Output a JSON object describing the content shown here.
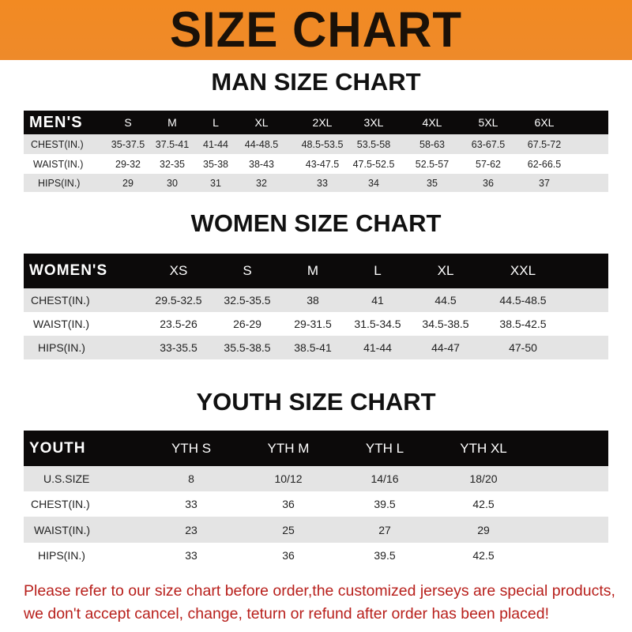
{
  "banner": {
    "title": "SIZE CHART",
    "color": "#f08a24"
  },
  "men": {
    "title": "MAN SIZE CHART",
    "header": "MEN'S",
    "sizes": [
      "S",
      "M",
      "L",
      "XL",
      "2XL",
      "3XL",
      "4XL",
      "5XL",
      "6XL"
    ],
    "rows": [
      {
        "label": "CHEST(IN.)",
        "values": [
          "35-37.5",
          "37.5-41",
          "41-44",
          "44-48.5",
          "48.5-53.5",
          "53.5-58",
          "58-63",
          "63-67.5",
          "67.5-72"
        ]
      },
      {
        "label": "WAIST(IN.)",
        "values": [
          "29-32",
          "32-35",
          "35-38",
          "38-43",
          "43-47.5",
          "47.5-52.5",
          "52.5-57",
          "57-62",
          "62-66.5"
        ]
      },
      {
        "label": "HIPS(IN.)",
        "values": [
          "29",
          "30",
          "31",
          "32",
          "33",
          "34",
          "35",
          "36",
          "37"
        ]
      }
    ]
  },
  "women": {
    "title": "WOMEN SIZE CHART",
    "header": "WOMEN'S",
    "sizes": [
      "XS",
      "S",
      "M",
      "L",
      "XL",
      "XXL"
    ],
    "rows": [
      {
        "label": "CHEST(IN.)",
        "values": [
          "29.5-32.5",
          "32.5-35.5",
          "38",
          "41",
          "44.5",
          "44.5-48.5"
        ]
      },
      {
        "label": "WAIST(IN.)",
        "values": [
          "23.5-26",
          "26-29",
          "29-31.5",
          "31.5-34.5",
          "34.5-38.5",
          "38.5-42.5"
        ]
      },
      {
        "label": "HIPS(IN.)",
        "values": [
          "33-35.5",
          "35.5-38.5",
          "38.5-41",
          "41-44",
          "44-47",
          "47-50"
        ]
      }
    ]
  },
  "youth": {
    "title": "YOUTH SIZE CHART",
    "header": "YOUTH",
    "sizes": [
      "YTH S",
      "YTH M",
      "YTH L",
      "YTH XL"
    ],
    "rows": [
      {
        "label": "U.S.SIZE",
        "values": [
          "8",
          "10/12",
          "14/16",
          "18/20"
        ]
      },
      {
        "label": "CHEST(IN.)",
        "values": [
          "33",
          "36",
          "39.5",
          "42.5"
        ]
      },
      {
        "label": "WAIST(IN.)",
        "values": [
          "23",
          "25",
          "27",
          "29"
        ]
      },
      {
        "label": "HIPS(IN.)",
        "values": [
          "33",
          "36",
          "39.5",
          "42.5"
        ]
      }
    ]
  },
  "note": {
    "line1": "Please refer to our size chart before order,the customized jerseys are special products,",
    "line2": "we don't accept cancel, change, teturn or refund after order has been placed!",
    "color": "#b8201c"
  }
}
